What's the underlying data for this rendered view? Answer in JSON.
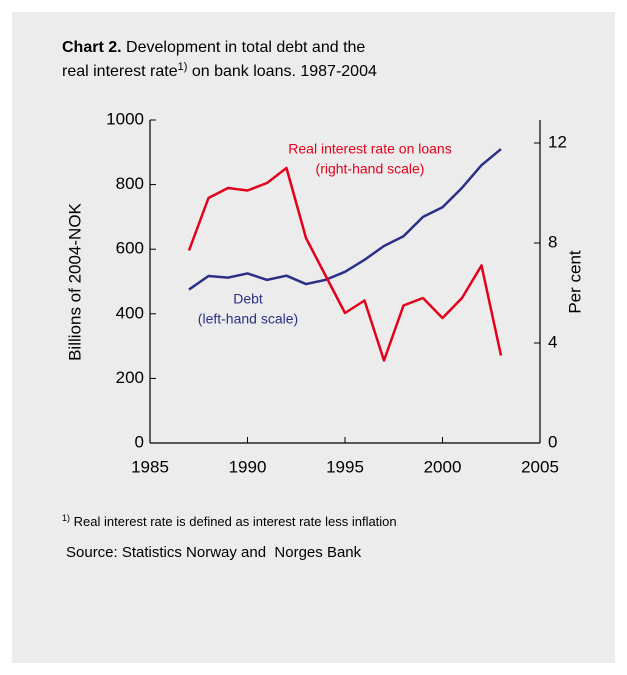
{
  "chart_data": {
    "type": "line",
    "title_label": "Chart 2.",
    "title_line1": "Development in total debt and the",
    "title_line2_start": "real interest rate",
    "title_note_mark": "1)",
    "title_line2_end": " on bank loans. 1987-2004",
    "y_label": "Billions of 2004-NOK",
    "y2_label": "Per cent",
    "x": [
      1987,
      1988,
      1989,
      1990,
      1991,
      1992,
      1993,
      1994,
      1995,
      1996,
      1997,
      1998,
      1999,
      2000,
      2001,
      2002,
      2003
    ],
    "series": [
      {
        "name": "Debt",
        "color": "#2b2f86",
        "values": [
          475,
          517,
          512,
          525,
          505,
          518,
          492,
          505,
          530,
          567,
          610,
          640,
          700,
          730,
          790,
          860,
          910
        ]
      },
      {
        "name": "Real interest rate on loans",
        "color": "#e3001b",
        "axis": "y2",
        "values": [
          7.7,
          9.8,
          10.2,
          10.1,
          10.4,
          11.0,
          8.2,
          6.7,
          5.2,
          5.7,
          3.3,
          5.5,
          5.8,
          5.0,
          5.8,
          7.1,
          3.5
        ]
      }
    ],
    "annotations": [
      {
        "text": "Real interest rate on loans",
        "series": 1
      },
      {
        "text": "(right-hand scale)",
        "series": 1
      },
      {
        "text": "Debt",
        "series": 0
      },
      {
        "text": "(left-hand scale)",
        "series": 0
      }
    ],
    "xlim": [
      1985,
      2005
    ],
    "xticks": [
      1985,
      1990,
      1995,
      2000,
      2005
    ],
    "ylim": [
      0,
      1000
    ],
    "yticks": [
      0,
      200,
      400,
      600,
      800,
      1000
    ],
    "y2lim": [
      0,
      12.92
    ],
    "y2ticks": [
      0,
      4,
      8,
      12
    ],
    "footnote_mark": "1)",
    "footnote": "Real interest rate is defined as interest rate less inflation",
    "source": "Source: Statistics Norway and  Norges Bank"
  }
}
